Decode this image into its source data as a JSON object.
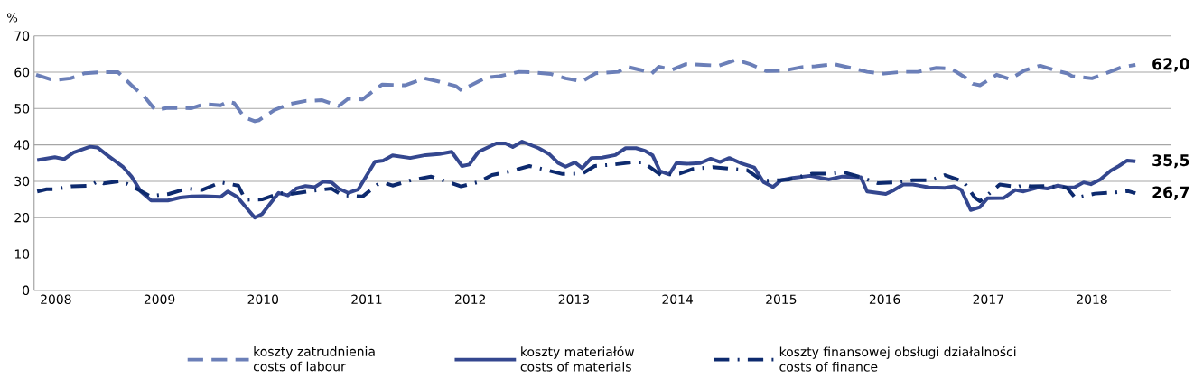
{
  "chart_data": {
    "type": "line",
    "ylabel": "%",
    "xlim": [
      2007.79,
      2018.76
    ],
    "ylim": [
      0,
      70
    ],
    "xticks": [
      2008,
      2009,
      2010,
      2011,
      2012,
      2013,
      2014,
      2015,
      2016,
      2017,
      2018
    ],
    "yticks": [
      0,
      10,
      20,
      30,
      40,
      50,
      60,
      70
    ],
    "grid": "y",
    "legend": "bottom",
    "series": [
      {
        "name": "koszty zatrudnienia\ncosts of labour",
        "color": "#6b7fb8",
        "line_style": "dashed",
        "x": [
          2007.81,
          2007.97,
          2008.14,
          2008.28,
          2008.44,
          2008.6,
          2008.73,
          2008.85,
          2008.96,
          2009.08,
          2009.31,
          2009.43,
          2009.59,
          2009.66,
          2009.72,
          2009.82,
          2009.92,
          2009.96,
          2010.11,
          2010.25,
          2010.41,
          2010.57,
          2010.73,
          2010.82,
          2010.96,
          2011.08,
          2011.15,
          2011.37,
          2011.56,
          2011.7,
          2011.86,
          2011.92,
          2011.98,
          2012.15,
          2012.28,
          2012.47,
          2012.59,
          2012.78,
          2012.92,
          2013.08,
          2013.21,
          2013.43,
          2013.51,
          2013.69,
          2013.75,
          2013.82,
          2013.95,
          2014.08,
          2014.25,
          2014.4,
          2014.57,
          2014.7,
          2014.86,
          2015.02,
          2015.2,
          2015.33,
          2015.51,
          2015.67,
          2015.83,
          2015.99,
          2016.17,
          2016.32,
          2016.5,
          2016.64,
          2016.79,
          2016.85,
          2016.92,
          2017.08,
          2017.21,
          2017.35,
          2017.5,
          2017.67,
          2017.76,
          2017.81,
          2018.0,
          2018.1,
          2018.29,
          2018.42
        ],
        "values": [
          59.3,
          57.8,
          58.3,
          59.7,
          60.0,
          60.0,
          56.4,
          53.4,
          49.6,
          50.2,
          50.1,
          51.2,
          50.9,
          51.9,
          51.5,
          47.6,
          46.5,
          46.8,
          49.6,
          51.2,
          52.1,
          52.3,
          50.7,
          52.7,
          52.5,
          55.2,
          56.6,
          56.4,
          58.3,
          57.4,
          56.2,
          54.9,
          56.0,
          58.5,
          58.9,
          60.1,
          60.0,
          59.5,
          58.3,
          57.5,
          59.7,
          60.1,
          61.5,
          60.3,
          59.6,
          61.5,
          60.7,
          62.2,
          62.0,
          61.8,
          63.4,
          62.2,
          60.3,
          60.4,
          61.4,
          61.6,
          62.2,
          61.2,
          60.1,
          59.6,
          60.1,
          60.1,
          61.2,
          61.0,
          58.3,
          56.8,
          56.4,
          59.3,
          58.1,
          60.5,
          61.8,
          60.3,
          59.7,
          58.9,
          58.3,
          59.3,
          61.4,
          62.0
        ]
      },
      {
        "name": "koszty materiałów\ncosts of materials",
        "color": "#34478f",
        "line_style": "solid",
        "x": [
          2007.82,
          2007.99,
          2008.08,
          2008.17,
          2008.33,
          2008.4,
          2008.5,
          2008.65,
          2008.73,
          2008.82,
          2008.92,
          2009.08,
          2009.2,
          2009.31,
          2009.43,
          2009.59,
          2009.66,
          2009.75,
          2009.92,
          2009.99,
          2010.15,
          2010.24,
          2010.32,
          2010.41,
          2010.5,
          2010.58,
          2010.66,
          2010.73,
          2010.82,
          2010.92,
          2011.08,
          2011.16,
          2011.25,
          2011.42,
          2011.57,
          2011.7,
          2011.82,
          2011.92,
          2011.99,
          2012.08,
          2012.25,
          2012.34,
          2012.41,
          2012.5,
          2012.66,
          2012.76,
          2012.85,
          2012.92,
          2013.01,
          2013.08,
          2013.17,
          2013.27,
          2013.4,
          2013.5,
          2013.6,
          2013.69,
          2013.76,
          2013.83,
          2013.92,
          2013.99,
          2014.09,
          2014.22,
          2014.32,
          2014.41,
          2014.5,
          2014.61,
          2014.74,
          2014.83,
          2014.92,
          2015.0,
          2015.11,
          2015.28,
          2015.46,
          2015.59,
          2015.77,
          2015.83,
          2016.01,
          2016.09,
          2016.18,
          2016.27,
          2016.43,
          2016.58,
          2016.67,
          2016.74,
          2016.83,
          2016.92,
          2016.99,
          2017.15,
          2017.26,
          2017.34,
          2017.48,
          2017.57,
          2017.67,
          2017.76,
          2017.83,
          2017.92,
          2017.99,
          2018.08,
          2018.18,
          2018.26,
          2018.34,
          2018.42
        ],
        "values": [
          35.8,
          36.6,
          36.1,
          37.9,
          39.5,
          39.3,
          37.1,
          33.9,
          31.3,
          27.2,
          24.7,
          24.7,
          25.5,
          25.8,
          25.9,
          25.7,
          27.2,
          25.7,
          20.0,
          21.0,
          26.8,
          26.1,
          28.0,
          28.7,
          28.4,
          29.9,
          29.7,
          28.0,
          26.8,
          27.8,
          35.4,
          35.7,
          37.1,
          36.4,
          37.2,
          37.5,
          38.1,
          34.2,
          34.6,
          38.1,
          40.4,
          40.4,
          39.4,
          40.9,
          39.1,
          37.5,
          35.0,
          34.0,
          35.2,
          33.6,
          36.4,
          36.5,
          37.2,
          39.1,
          39.1,
          38.3,
          37.1,
          32.8,
          31.9,
          35.0,
          34.8,
          35.0,
          36.2,
          35.3,
          36.4,
          35.0,
          33.8,
          29.8,
          28.4,
          30.3,
          30.9,
          31.5,
          30.5,
          31.3,
          31.1,
          27.2,
          26.5,
          27.6,
          29.1,
          29.1,
          28.3,
          28.2,
          28.6,
          27.6,
          22.1,
          22.9,
          25.3,
          25.4,
          27.6,
          27.2,
          28.3,
          28.0,
          28.8,
          28.3,
          28.3,
          29.7,
          29.2,
          30.5,
          32.9,
          34.2,
          35.7,
          35.5
        ]
      },
      {
        "name": "koszty finansowej obsługi działalności\ncosts of finance",
        "color": "#0d2a6e",
        "line_style": "dashdot",
        "x": [
          2007.82,
          2007.91,
          2007.98,
          2008.15,
          2008.33,
          2008.41,
          2008.46,
          2008.63,
          2008.8,
          2008.91,
          2009.09,
          2009.27,
          2009.41,
          2009.59,
          2009.76,
          2009.83,
          2009.99,
          2010.17,
          2010.25,
          2010.48,
          2010.66,
          2010.77,
          2010.96,
          2011.11,
          2011.18,
          2011.25,
          2011.43,
          2011.62,
          2011.73,
          2011.91,
          2012.08,
          2012.21,
          2012.38,
          2012.57,
          2012.72,
          2012.89,
          2013.08,
          2013.2,
          2013.38,
          2013.56,
          2013.67,
          2013.84,
          2014.02,
          2014.15,
          2014.34,
          2014.53,
          2014.67,
          2014.82,
          2014.99,
          2015.08,
          2015.3,
          2015.48,
          2015.6,
          2015.77,
          2015.93,
          2016.09,
          2016.27,
          2016.45,
          2016.58,
          2016.76,
          2016.87,
          2016.92,
          2016.98,
          2017.11,
          2017.28,
          2017.34,
          2017.41,
          2017.57,
          2017.76,
          2017.84,
          2018.03,
          2018.21,
          2018.35,
          2018.42
        ],
        "values": [
          27.2,
          27.8,
          27.8,
          28.6,
          28.8,
          30.1,
          29.4,
          30.1,
          27.6,
          25.9,
          26.5,
          28.0,
          27.6,
          29.7,
          28.8,
          24.9,
          25.0,
          26.8,
          26.4,
          27.4,
          28.0,
          26.1,
          25.8,
          29.2,
          29.5,
          28.8,
          30.3,
          31.3,
          30.3,
          28.6,
          29.8,
          31.7,
          32.7,
          34.2,
          33.2,
          32.0,
          32.1,
          34.2,
          34.6,
          35.2,
          35.2,
          31.7,
          32.1,
          33.4,
          33.9,
          33.4,
          33.1,
          30.1,
          30.3,
          30.5,
          32.1,
          32.1,
          32.5,
          31.1,
          29.5,
          29.7,
          30.3,
          30.3,
          31.7,
          29.9,
          25.5,
          24.5,
          25.9,
          29.1,
          28.4,
          29.0,
          28.6,
          28.7,
          28.2,
          25.4,
          26.6,
          26.9,
          27.3,
          26.7
        ]
      }
    ],
    "annotations": [
      "62,0",
      "35,5",
      "26,7"
    ]
  }
}
